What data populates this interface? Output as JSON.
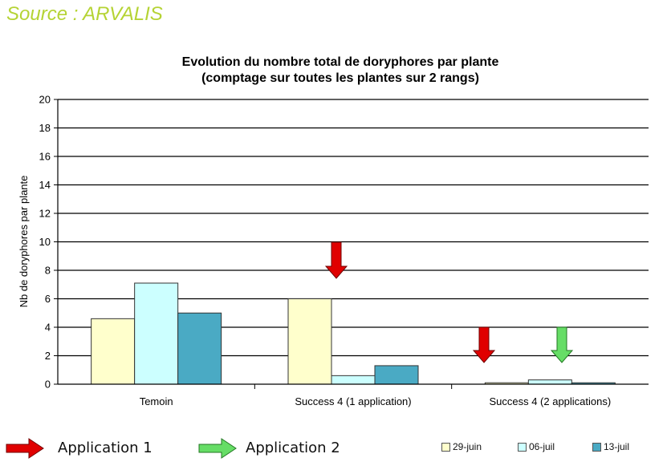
{
  "source": "Source : ARVALIS",
  "chart_data": {
    "type": "bar",
    "title": "Evolution du nombre total de doryphores par plante",
    "subtitle": "(comptage sur toutes les plantes sur 2 rangs)",
    "ylabel": "Nb de doryphores par plante",
    "xlabel": "",
    "ylim": [
      0,
      20
    ],
    "yticks": [
      0,
      2,
      4,
      6,
      8,
      10,
      12,
      14,
      16,
      18,
      20
    ],
    "grid": true,
    "categories": [
      "Temoin",
      "Success 4 (1 application)",
      "Success 4 (2 applications)"
    ],
    "series": [
      {
        "name": "29-juin",
        "color": "#ffffcc",
        "values": [
          4.6,
          6.0,
          0.1
        ]
      },
      {
        "name": "06-juil",
        "color": "#ccffff",
        "values": [
          7.1,
          0.6,
          0.3
        ]
      },
      {
        "name": "13-juil",
        "color": "#4aaac4",
        "values": [
          5.0,
          1.3,
          0.1
        ]
      }
    ],
    "legend_position": "bottom-right"
  },
  "annotations": {
    "application1_label": "Application 1",
    "application2_label": "Application 2",
    "application1_color": "#e00000",
    "application2_color": "#66dd66"
  }
}
